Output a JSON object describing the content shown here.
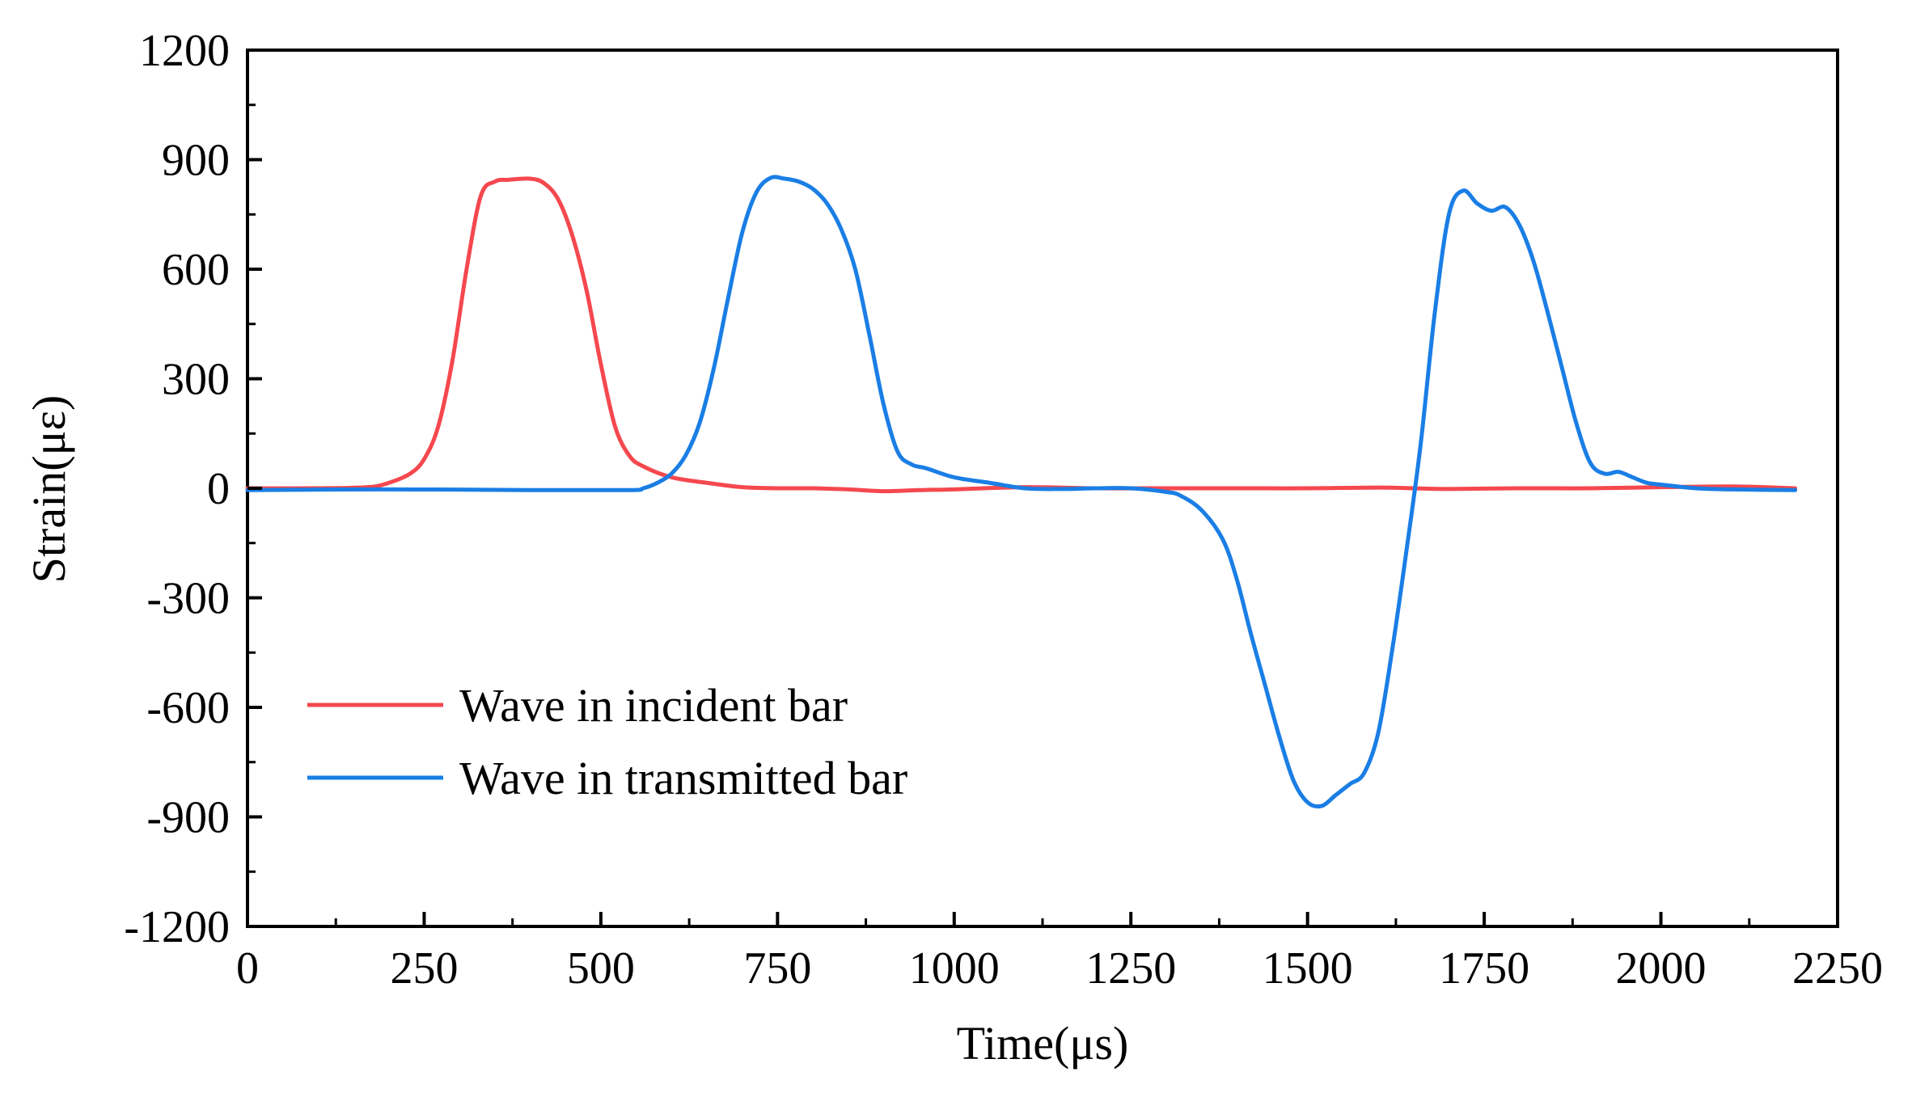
{
  "chart_data": {
    "type": "line",
    "title": "",
    "xlabel": "Time(μs)",
    "ylabel": "Strain(με)",
    "xlim": [
      0,
      2250
    ],
    "ylim": [
      -1200,
      1200
    ],
    "x_ticks": [
      0,
      250,
      500,
      750,
      1000,
      1250,
      1500,
      1750,
      2000,
      2250
    ],
    "x_tick_labels": [
      "0",
      "250",
      "500",
      "750",
      "1000",
      "1250",
      "1500",
      "1750",
      "2000",
      "2250"
    ],
    "y_ticks": [
      1200,
      900,
      600,
      300,
      0,
      -300,
      -600,
      -900,
      -1200
    ],
    "y_tick_labels": [
      "1200",
      "900",
      "600",
      "300",
      "0",
      "-300",
      "-600",
      "-900",
      "-1200"
    ],
    "grid": false,
    "legend_position": "bottom-left",
    "series": [
      {
        "name": "Wave in incident bar",
        "color": "#f5484e",
        "x": [
          0,
          100,
          170,
          200,
          230,
          250,
          270,
          290,
          310,
          330,
          350,
          370,
          400,
          420,
          440,
          460,
          480,
          500,
          520,
          540,
          560,
          600,
          650,
          700,
          750,
          800,
          850,
          900,
          950,
          1000,
          1100,
          1200,
          1300,
          1400,
          1500,
          1600,
          1650,
          1700,
          1800,
          1900,
          2000,
          2100,
          2190
        ],
        "y": [
          0,
          0,
          3,
          15,
          40,
          80,
          170,
          350,
          600,
          800,
          840,
          845,
          848,
          835,
          790,
          690,
          540,
          340,
          170,
          90,
          60,
          30,
          15,
          3,
          0,
          0,
          -3,
          -8,
          -5,
          -3,
          3,
          0,
          0,
          0,
          0,
          2,
          0,
          -2,
          0,
          0,
          3,
          5,
          0
        ]
      },
      {
        "name": "Wave in transmitted bar",
        "color": "#1a7ee5",
        "x": [
          0,
          200,
          400,
          540,
          560,
          580,
          600,
          620,
          640,
          660,
          680,
          700,
          720,
          740,
          760,
          780,
          800,
          820,
          840,
          860,
          880,
          900,
          920,
          940,
          960,
          1000,
          1050,
          1100,
          1150,
          1200,
          1250,
          1300,
          1320,
          1350,
          1380,
          1400,
          1420,
          1440,
          1460,
          1480,
          1500,
          1520,
          1540,
          1560,
          1580,
          1600,
          1620,
          1640,
          1660,
          1680,
          1700,
          1720,
          1740,
          1760,
          1780,
          1800,
          1820,
          1840,
          1860,
          1880,
          1900,
          1920,
          1940,
          1960,
          1980,
          2000,
          2050,
          2100,
          2190
        ],
        "y": [
          -5,
          -3,
          -5,
          -5,
          0,
          15,
          40,
          90,
          180,
          330,
          520,
          700,
          810,
          850,
          848,
          840,
          820,
          780,
          710,
          600,
          420,
          230,
          100,
          65,
          55,
          30,
          15,
          0,
          -2,
          0,
          0,
          -10,
          -20,
          -60,
          -140,
          -250,
          -400,
          -540,
          -680,
          -800,
          -860,
          -870,
          -840,
          -810,
          -780,
          -670,
          -440,
          -170,
          120,
          480,
          750,
          815,
          780,
          760,
          770,
          720,
          620,
          480,
          330,
          180,
          70,
          40,
          45,
          30,
          15,
          10,
          0,
          -3,
          -5
        ]
      }
    ]
  }
}
